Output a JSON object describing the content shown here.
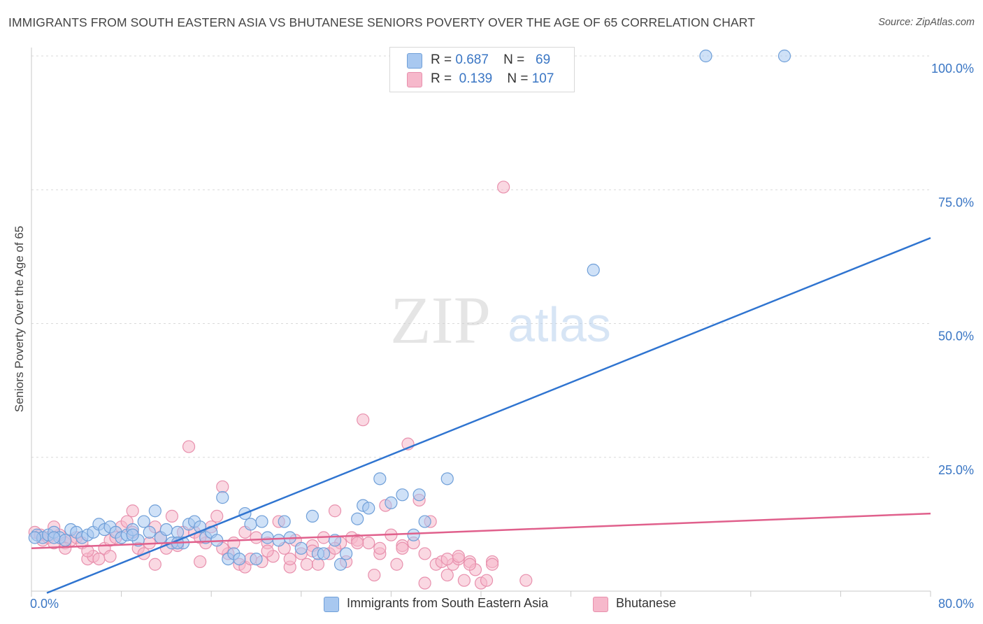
{
  "title": "IMMIGRANTS FROM SOUTH EASTERN ASIA VS BHUTANESE SENIORS POVERTY OVER THE AGE OF 65 CORRELATION CHART",
  "source": "Source: ZipAtlas.com",
  "watermark": {
    "zip": "ZIP",
    "atlas": "atlas"
  },
  "legend": {
    "rows": [
      {
        "r_label": "R =",
        "r_value": "0.687",
        "n_label": "N =",
        "n_value": "69",
        "color": "#a8c8f0"
      },
      {
        "r_label": "R =",
        "r_value": "0.139",
        "n_label": "N =",
        "n_value": "107",
        "color": "#f6b8cb"
      }
    ]
  },
  "colors": {
    "blue_fill": "#a8c8f0",
    "blue_stroke": "#6f9fd8",
    "blue_line": "#2f74d0",
    "pink_fill": "#f6b8cb",
    "pink_stroke": "#e890ad",
    "pink_line": "#e0608c",
    "tick_label": "#3a76c4",
    "grid": "#d9d9d9"
  },
  "chart_data": {
    "type": "scatter",
    "xlabel": "",
    "ylabel": "Seniors Poverty Over the Age of 65",
    "xlim": [
      0,
      80
    ],
    "ylim": [
      0,
      100
    ],
    "x_tick_labels": [
      "0.0%",
      "80.0%"
    ],
    "y_tick_labels": [
      "25.0%",
      "50.0%",
      "75.0%",
      "100.0%"
    ],
    "y_ticks": [
      25,
      50,
      75,
      100
    ],
    "grid": true,
    "legend_position": "top-center",
    "series": [
      {
        "name": "Immigrants from South Eastern Asia",
        "color": "#a8c8f0",
        "points": [
          [
            0.5,
            10.5
          ],
          [
            1,
            10
          ],
          [
            1.5,
            10.5
          ],
          [
            2,
            11
          ],
          [
            2.5,
            10
          ],
          [
            3,
            9.5
          ],
          [
            3.5,
            11.5
          ],
          [
            4,
            11
          ],
          [
            4.5,
            10
          ],
          [
            5,
            10.5
          ],
          [
            5.5,
            11
          ],
          [
            6,
            12.5
          ],
          [
            6.5,
            11.5
          ],
          [
            7,
            12
          ],
          [
            7.5,
            11
          ],
          [
            8,
            10
          ],
          [
            8.5,
            10.5
          ],
          [
            9,
            11.5
          ],
          [
            9.5,
            9.5
          ],
          [
            10,
            13
          ],
          [
            10.5,
            11
          ],
          [
            11,
            15
          ],
          [
            11.5,
            10
          ],
          [
            12,
            11.5
          ],
          [
            12.5,
            9
          ],
          [
            13,
            11
          ],
          [
            13.5,
            9
          ],
          [
            14,
            12.5
          ],
          [
            14.5,
            13
          ],
          [
            15,
            12
          ],
          [
            15.5,
            10
          ],
          [
            16,
            11
          ],
          [
            16.5,
            9.5
          ],
          [
            17,
            17.5
          ],
          [
            17.5,
            6
          ],
          [
            18,
            7
          ],
          [
            18.5,
            6
          ],
          [
            19,
            14.5
          ],
          [
            19.5,
            12.5
          ],
          [
            20,
            6
          ],
          [
            20.5,
            13
          ],
          [
            21,
            10
          ],
          [
            22,
            9.5
          ],
          [
            22.5,
            13
          ],
          [
            23,
            10
          ],
          [
            24,
            8
          ],
          [
            25,
            14
          ],
          [
            25.5,
            7
          ],
          [
            26,
            7
          ],
          [
            27,
            9.5
          ],
          [
            27.5,
            5
          ],
          [
            28,
            7
          ],
          [
            29,
            13.5
          ],
          [
            29.5,
            16
          ],
          [
            30,
            15.5
          ],
          [
            31,
            21
          ],
          [
            32,
            16.5
          ],
          [
            33,
            18
          ],
          [
            34,
            10.5
          ],
          [
            34.5,
            18
          ],
          [
            35,
            13
          ],
          [
            37,
            21
          ],
          [
            50,
            60
          ],
          [
            60,
            100
          ],
          [
            67,
            100
          ],
          [
            0.3,
            10
          ],
          [
            2,
            10
          ],
          [
            9,
            10.5
          ],
          [
            13,
            9
          ]
        ]
      },
      {
        "name": "Bhutanese",
        "color": "#f6b8cb",
        "points": [
          [
            0.3,
            11
          ],
          [
            0.8,
            10.5
          ],
          [
            1,
            9.5
          ],
          [
            1.5,
            10
          ],
          [
            2,
            9
          ],
          [
            2.5,
            10.5
          ],
          [
            3,
            9
          ],
          [
            3.5,
            9.5
          ],
          [
            4,
            10
          ],
          [
            4.5,
            9
          ],
          [
            5,
            6
          ],
          [
            5.5,
            6.5
          ],
          [
            6,
            6
          ],
          [
            6.5,
            8
          ],
          [
            7,
            9.5
          ],
          [
            7.5,
            10
          ],
          [
            8,
            12
          ],
          [
            8.5,
            13
          ],
          [
            9,
            15
          ],
          [
            9.5,
            8
          ],
          [
            10,
            7
          ],
          [
            10.5,
            9
          ],
          [
            11,
            12
          ],
          [
            11.5,
            10
          ],
          [
            12,
            8
          ],
          [
            12.5,
            14
          ],
          [
            13,
            9
          ],
          [
            13.5,
            11
          ],
          [
            14,
            27
          ],
          [
            14.5,
            11
          ],
          [
            15,
            5.5
          ],
          [
            15.5,
            9
          ],
          [
            16,
            12
          ],
          [
            16.5,
            14
          ],
          [
            17,
            19.5
          ],
          [
            17.5,
            7
          ],
          [
            18,
            9
          ],
          [
            18.5,
            5
          ],
          [
            19,
            4.5
          ],
          [
            19.5,
            6
          ],
          [
            20,
            10
          ],
          [
            20.5,
            5.5
          ],
          [
            21,
            9
          ],
          [
            21.5,
            6.5
          ],
          [
            22,
            13
          ],
          [
            22.5,
            8
          ],
          [
            23,
            4.5
          ],
          [
            23.5,
            9.5
          ],
          [
            24,
            7
          ],
          [
            24.5,
            5
          ],
          [
            25,
            8.5
          ],
          [
            25.5,
            5
          ],
          [
            26,
            10
          ],
          [
            26.5,
            7
          ],
          [
            27,
            15
          ],
          [
            27.5,
            9
          ],
          [
            28,
            5.5
          ],
          [
            28.5,
            10
          ],
          [
            29,
            9.5
          ],
          [
            29.5,
            32
          ],
          [
            30,
            9
          ],
          [
            30.5,
            3
          ],
          [
            31,
            7
          ],
          [
            31.5,
            16
          ],
          [
            32,
            10.5
          ],
          [
            32.5,
            5
          ],
          [
            33,
            8.5
          ],
          [
            33.5,
            27.5
          ],
          [
            34,
            9
          ],
          [
            34.5,
            17
          ],
          [
            35,
            1.5
          ],
          [
            35.5,
            13
          ],
          [
            36,
            5
          ],
          [
            36.5,
            5.5
          ],
          [
            37,
            3
          ],
          [
            37.5,
            5
          ],
          [
            38,
            6
          ],
          [
            38.5,
            2
          ],
          [
            39,
            5.5
          ],
          [
            39.5,
            4
          ],
          [
            40,
            1.5
          ],
          [
            40.5,
            2
          ],
          [
            41,
            5.5
          ],
          [
            42,
            75.5
          ],
          [
            44,
            2
          ],
          [
            2,
            12
          ],
          [
            3,
            8
          ],
          [
            5,
            7.5
          ],
          [
            7,
            6.5
          ],
          [
            9,
            11
          ],
          [
            11,
            5
          ],
          [
            13,
            8.5
          ],
          [
            15,
            10
          ],
          [
            17,
            8
          ],
          [
            19,
            11
          ],
          [
            21,
            7.5
          ],
          [
            23,
            6
          ],
          [
            25,
            7.5
          ],
          [
            27,
            8
          ],
          [
            29,
            9
          ],
          [
            31,
            8
          ],
          [
            33,
            8
          ],
          [
            35,
            7
          ],
          [
            37,
            6
          ],
          [
            38,
            6.5
          ],
          [
            39,
            5
          ],
          [
            41,
            5
          ]
        ]
      }
    ],
    "trend_lines": [
      {
        "series": "Immigrants from South Eastern Asia",
        "x": [
          0,
          80
        ],
        "y": [
          -1.5,
          66
        ]
      },
      {
        "series": "Bhutanese",
        "x": [
          0,
          80
        ],
        "y": [
          8,
          14.5
        ]
      }
    ]
  },
  "bottom_legend": {
    "items": [
      {
        "label": "Immigrants from South Eastern Asia",
        "color": "#a8c8f0"
      },
      {
        "label": "Bhutanese",
        "color": "#f6b8cb"
      }
    ]
  }
}
